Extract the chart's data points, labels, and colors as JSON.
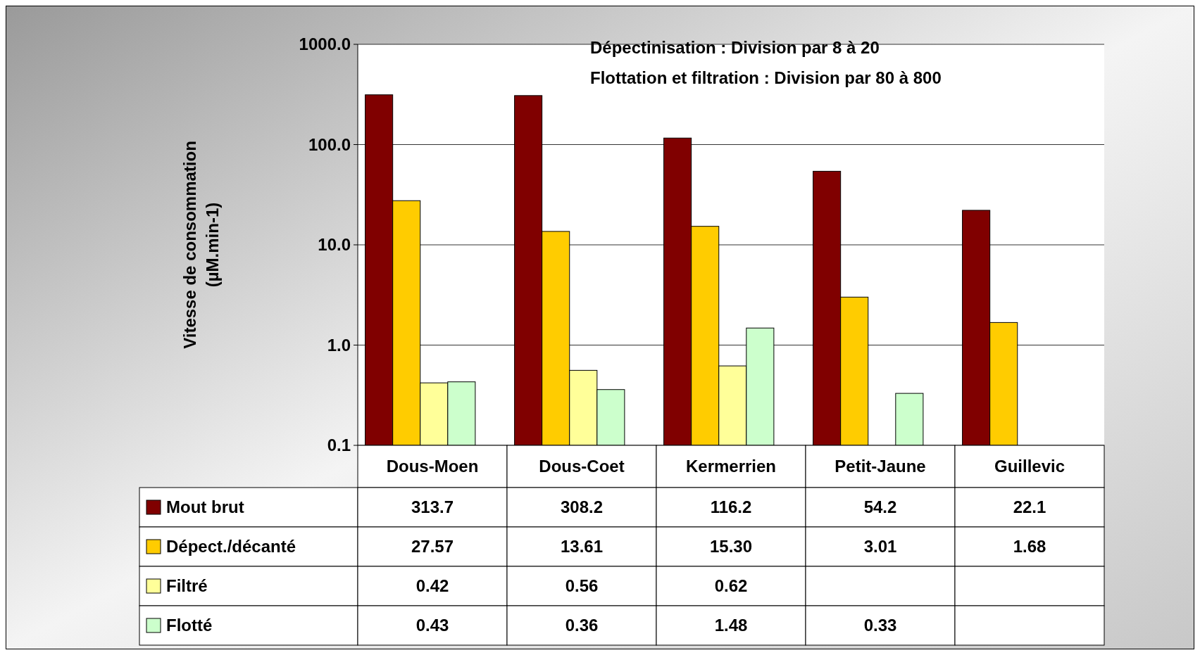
{
  "chart_data": {
    "type": "bar",
    "ylabel": "Vitesse de consommation\n(µM.min-1)",
    "categories": [
      "Dous-Moen",
      "Dous-Coet",
      "Kermerrien",
      "Petit-Jaune",
      "Guillevic"
    ],
    "series": [
      {
        "name": "Mout brut",
        "color": "#800000",
        "values": [
          313.7,
          308.2,
          116.2,
          54.2,
          22.1
        ]
      },
      {
        "name": "Dépect./décanté",
        "color": "#ffcc00",
        "values": [
          27.57,
          13.61,
          15.3,
          3.01,
          1.68
        ],
        "value_labels": [
          "27.57",
          "13.61",
          "15.30",
          "3.01",
          "1.68"
        ]
      },
      {
        "name": "Filtré",
        "color": "#ffff99",
        "values": [
          0.42,
          0.56,
          0.62,
          null,
          null
        ]
      },
      {
        "name": "Flotté",
        "color": "#ccffcc",
        "values": [
          0.43,
          0.36,
          1.48,
          0.33,
          null
        ]
      }
    ],
    "log": "y",
    "ylim": [
      0.1,
      1000
    ],
    "yticks": [
      {
        "value": 0.1,
        "label": "0.1"
      },
      {
        "value": 1,
        "label": "1.0"
      },
      {
        "value": 10,
        "label": "10.0"
      },
      {
        "value": 100,
        "label": "100.0"
      },
      {
        "value": 1000,
        "label": "1000.0"
      }
    ],
    "grid": "y",
    "legend": "bottom",
    "data_labels": true,
    "annotations": [
      "Dépectinisation : Division par 8 à 20",
      "Flottation et filtration : Division par 80 à 800"
    ]
  }
}
